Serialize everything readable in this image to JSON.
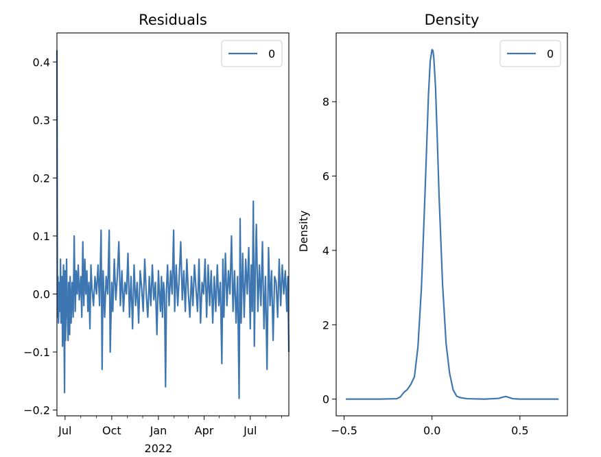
{
  "chart_data": [
    {
      "type": "line",
      "title": "Residuals",
      "xlabel": "",
      "ylabel": "",
      "xlim": [
        "2021-06-15",
        "2022-09-15"
      ],
      "ylim": [
        -0.21,
        0.45
      ],
      "x_ticks": [
        {
          "date": "2021-07-01",
          "label": "Jul",
          "sublabel": ""
        },
        {
          "date": "2021-10-01",
          "label": "Oct",
          "sublabel": ""
        },
        {
          "date": "2022-01-01",
          "label": "Jan",
          "sublabel": "2022"
        },
        {
          "date": "2022-04-01",
          "label": "Apr",
          "sublabel": ""
        },
        {
          "date": "2022-07-01",
          "label": "Jul",
          "sublabel": ""
        }
      ],
      "y_ticks": [
        -0.2,
        -0.1,
        0.0,
        0.1,
        0.2,
        0.3,
        0.4
      ],
      "y_tick_labels": [
        "−0.2",
        "−0.1",
        "0.0",
        "0.1",
        "0.2",
        "0.3",
        "0.4"
      ],
      "legend": {
        "position": "top-right",
        "entries": [
          "0"
        ]
      },
      "color": "#3d76b1",
      "series": [
        {
          "name": "0",
          "points": [
            [
              "2021-06-15",
              0.42
            ],
            [
              "2021-06-16",
              -0.04
            ],
            [
              "2021-06-17",
              0.03
            ],
            [
              "2021-06-18",
              -0.05
            ],
            [
              "2021-06-20",
              0.02
            ],
            [
              "2021-06-21",
              -0.03
            ],
            [
              "2021-06-22",
              0.06
            ],
            [
              "2021-06-23",
              -0.05
            ],
            [
              "2021-06-25",
              0.03
            ],
            [
              "2021-06-26",
              -0.09
            ],
            [
              "2021-06-27",
              0.01
            ],
            [
              "2021-06-28",
              0.05
            ],
            [
              "2021-06-30",
              -0.17
            ],
            [
              "2021-07-01",
              0.04
            ],
            [
              "2021-07-02",
              -0.08
            ],
            [
              "2021-07-04",
              0.06
            ],
            [
              "2021-07-05",
              -0.02
            ],
            [
              "2021-07-07",
              -0.08
            ],
            [
              "2021-07-08",
              0.02
            ],
            [
              "2021-07-10",
              -0.07
            ],
            [
              "2021-07-11",
              0.03
            ],
            [
              "2021-07-13",
              -0.05
            ],
            [
              "2021-07-15",
              0.02
            ],
            [
              "2021-07-17",
              -0.04
            ],
            [
              "2021-07-19",
              0.1
            ],
            [
              "2021-07-21",
              -0.03
            ],
            [
              "2021-07-23",
              0.04
            ],
            [
              "2021-07-25",
              0.0
            ],
            [
              "2021-07-27",
              0.05
            ],
            [
              "2021-07-29",
              -0.01
            ],
            [
              "2021-08-01",
              0.03
            ],
            [
              "2021-08-03",
              -0.04
            ],
            [
              "2021-08-05",
              0.09
            ],
            [
              "2021-08-07",
              -0.02
            ],
            [
              "2021-08-09",
              0.06
            ],
            [
              "2021-08-11",
              0.0
            ],
            [
              "2021-08-13",
              0.04
            ],
            [
              "2021-08-15",
              -0.03
            ],
            [
              "2021-08-17",
              0.02
            ],
            [
              "2021-08-19",
              -0.06
            ],
            [
              "2021-08-21",
              0.05
            ],
            [
              "2021-08-23",
              0.01
            ],
            [
              "2021-08-26",
              -0.02
            ],
            [
              "2021-08-29",
              0.03
            ],
            [
              "2021-09-01",
              0.0
            ],
            [
              "2021-09-04",
              0.05
            ],
            [
              "2021-09-07",
              -0.02
            ],
            [
              "2021-09-10",
              0.11
            ],
            [
              "2021-09-12",
              -0.13
            ],
            [
              "2021-09-14",
              0.04
            ],
            [
              "2021-09-17",
              -0.04
            ],
            [
              "2021-09-20",
              0.03
            ],
            [
              "2021-09-23",
              0.0
            ],
            [
              "2021-09-26",
              0.11
            ],
            [
              "2021-09-28",
              -0.1
            ],
            [
              "2021-10-01",
              0.02
            ],
            [
              "2021-10-03",
              -0.03
            ],
            [
              "2021-10-06",
              0.06
            ],
            [
              "2021-10-09",
              -0.01
            ],
            [
              "2021-10-12",
              0.03
            ],
            [
              "2021-10-15",
              0.09
            ],
            [
              "2021-10-18",
              -0.02
            ],
            [
              "2021-10-21",
              0.04
            ],
            [
              "2021-10-24",
              -0.03
            ],
            [
              "2021-10-27",
              0.02
            ],
            [
              "2021-10-30",
              0.0
            ],
            [
              "2021-11-02",
              0.07
            ],
            [
              "2021-11-05",
              -0.04
            ],
            [
              "2021-11-08",
              0.03
            ],
            [
              "2021-11-11",
              -0.06
            ],
            [
              "2021-11-14",
              0.05
            ],
            [
              "2021-11-17",
              -0.02
            ],
            [
              "2021-11-20",
              0.02
            ],
            [
              "2021-11-23",
              -0.05
            ],
            [
              "2021-11-26",
              0.04
            ],
            [
              "2021-11-29",
              0.01
            ],
            [
              "2021-12-02",
              -0.03
            ],
            [
              "2021-12-05",
              0.06
            ],
            [
              "2021-12-08",
              0.0
            ],
            [
              "2021-12-11",
              -0.04
            ],
            [
              "2021-12-14",
              0.03
            ],
            [
              "2021-12-17",
              -0.02
            ],
            [
              "2021-12-20",
              0.05
            ],
            [
              "2021-12-23",
              -0.01
            ],
            [
              "2021-12-26",
              0.02
            ],
            [
              "2021-12-29",
              -0.07
            ],
            [
              "2022-01-01",
              0.04
            ],
            [
              "2022-01-03",
              0.0
            ],
            [
              "2022-01-05",
              -0.03
            ],
            [
              "2022-01-07",
              0.03
            ],
            [
              "2022-01-09",
              -0.04
            ],
            [
              "2022-01-11",
              0.02
            ],
            [
              "2022-01-13",
              0.0
            ],
            [
              "2022-01-15",
              -0.16
            ],
            [
              "2022-01-17",
              0.01
            ],
            [
              "2022-01-19",
              0.05
            ],
            [
              "2022-01-22",
              -0.02
            ],
            [
              "2022-01-25",
              0.04
            ],
            [
              "2022-01-28",
              0.0
            ],
            [
              "2022-01-31",
              0.11
            ],
            [
              "2022-02-02",
              -0.03
            ],
            [
              "2022-02-05",
              0.05
            ],
            [
              "2022-02-08",
              -0.02
            ],
            [
              "2022-02-11",
              0.03
            ],
            [
              "2022-02-14",
              0.09
            ],
            [
              "2022-02-17",
              -0.01
            ],
            [
              "2022-02-20",
              0.04
            ],
            [
              "2022-02-23",
              -0.03
            ],
            [
              "2022-02-26",
              0.06
            ],
            [
              "2022-03-01",
              0.0
            ],
            [
              "2022-03-04",
              -0.04
            ],
            [
              "2022-03-07",
              0.03
            ],
            [
              "2022-03-10",
              -0.02
            ],
            [
              "2022-03-13",
              0.05
            ],
            [
              "2022-03-16",
              0.01
            ],
            [
              "2022-03-19",
              -0.03
            ],
            [
              "2022-03-22",
              0.06
            ],
            [
              "2022-03-25",
              -0.05
            ],
            [
              "2022-03-28",
              0.02
            ],
            [
              "2022-03-31",
              0.0
            ],
            [
              "2022-04-03",
              0.06
            ],
            [
              "2022-04-06",
              -0.04
            ],
            [
              "2022-04-09",
              0.05
            ],
            [
              "2022-04-12",
              -0.02
            ],
            [
              "2022-04-15",
              0.04
            ],
            [
              "2022-04-18",
              -0.05
            ],
            [
              "2022-04-21",
              0.03
            ],
            [
              "2022-04-24",
              -0.03
            ],
            [
              "2022-04-27",
              0.05
            ],
            [
              "2022-04-30",
              -0.02
            ],
            [
              "2022-05-03",
              0.02
            ],
            [
              "2022-05-06",
              -0.12
            ],
            [
              "2022-05-08",
              0.06
            ],
            [
              "2022-05-10",
              -0.04
            ],
            [
              "2022-05-13",
              0.07
            ],
            [
              "2022-05-16",
              -0.02
            ],
            [
              "2022-05-19",
              0.04
            ],
            [
              "2022-05-22",
              0.0
            ],
            [
              "2022-05-25",
              0.1
            ],
            [
              "2022-05-28",
              -0.03
            ],
            [
              "2022-05-31",
              0.04
            ],
            [
              "2022-06-03",
              -0.05
            ],
            [
              "2022-06-06",
              0.03
            ],
            [
              "2022-06-09",
              -0.18
            ],
            [
              "2022-06-11",
              0.13
            ],
            [
              "2022-06-13",
              -0.05
            ],
            [
              "2022-06-16",
              0.07
            ],
            [
              "2022-06-19",
              -0.04
            ],
            [
              "2022-06-22",
              0.06
            ],
            [
              "2022-06-25",
              0.0
            ],
            [
              "2022-06-28",
              0.08
            ],
            [
              "2022-07-01",
              -0.06
            ],
            [
              "2022-07-03",
              0.05
            ],
            [
              "2022-07-05",
              -0.03
            ],
            [
              "2022-07-07",
              0.16
            ],
            [
              "2022-07-09",
              -0.09
            ],
            [
              "2022-07-11",
              0.04
            ],
            [
              "2022-07-13",
              0.12
            ],
            [
              "2022-07-16",
              -0.03
            ],
            [
              "2022-07-19",
              0.05
            ],
            [
              "2022-07-22",
              -0.02
            ],
            [
              "2022-07-25",
              0.09
            ],
            [
              "2022-07-28",
              -0.06
            ],
            [
              "2022-07-31",
              0.03
            ],
            [
              "2022-08-03",
              -0.13
            ],
            [
              "2022-08-06",
              0.08
            ],
            [
              "2022-08-09",
              -0.02
            ],
            [
              "2022-08-12",
              0.04
            ],
            [
              "2022-08-15",
              -0.08
            ],
            [
              "2022-08-18",
              0.03
            ],
            [
              "2022-08-21",
              0.02
            ],
            [
              "2022-08-24",
              -0.04
            ],
            [
              "2022-08-27",
              0.06
            ],
            [
              "2022-08-30",
              -0.02
            ],
            [
              "2022-09-02",
              0.05
            ],
            [
              "2022-09-05",
              0.0
            ],
            [
              "2022-09-08",
              0.04
            ],
            [
              "2022-09-11",
              -0.03
            ],
            [
              "2022-09-13",
              0.03
            ],
            [
              "2022-09-15",
              -0.1
            ]
          ]
        }
      ]
    },
    {
      "type": "line",
      "title": "Density",
      "xlabel": "",
      "ylabel": "Density",
      "xlim": [
        -0.545,
        0.77
      ],
      "ylim": [
        -0.45,
        9.85
      ],
      "x_ticks": [
        -0.5,
        0.0,
        0.5
      ],
      "x_tick_labels": [
        "−0.5",
        "0.0",
        "0.5"
      ],
      "y_ticks": [
        0,
        2,
        4,
        6,
        8
      ],
      "y_tick_labels": [
        "0",
        "2",
        "4",
        "6",
        "8"
      ],
      "legend": {
        "position": "top-right",
        "entries": [
          "0"
        ]
      },
      "color": "#3d76b1",
      "series": [
        {
          "name": "0",
          "x": [
            -0.49,
            -0.4,
            -0.3,
            -0.2,
            -0.18,
            -0.16,
            -0.14,
            -0.12,
            -0.1,
            -0.08,
            -0.06,
            -0.04,
            -0.02,
            -0.01,
            0.0,
            0.005,
            0.01,
            0.02,
            0.03,
            0.04,
            0.06,
            0.08,
            0.1,
            0.12,
            0.14,
            0.16,
            0.2,
            0.3,
            0.38,
            0.4,
            0.42,
            0.44,
            0.46,
            0.5,
            0.6,
            0.72
          ],
          "y": [
            0.0,
            0.0,
            0.0,
            0.01,
            0.06,
            0.18,
            0.26,
            0.4,
            0.6,
            1.4,
            3.0,
            5.5,
            8.2,
            9.1,
            9.4,
            9.38,
            9.2,
            8.4,
            7.0,
            5.5,
            3.1,
            1.5,
            0.7,
            0.25,
            0.08,
            0.04,
            0.01,
            0.0,
            0.02,
            0.05,
            0.07,
            0.04,
            0.01,
            0.0,
            0.0,
            0.0
          ]
        }
      ]
    }
  ]
}
